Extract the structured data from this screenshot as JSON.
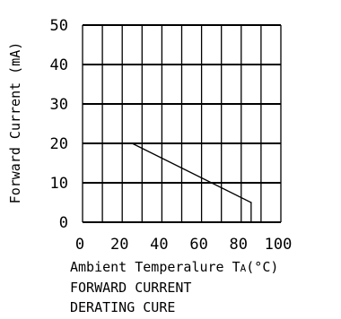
{
  "chart_data": {
    "type": "line",
    "title": "FORWARD CURRENT",
    "subtitle": "DERATING CURE",
    "xlabel": "Ambient Temperalure T",
    "xlabel_subscript": "A",
    "xlabel_unit": "(°C)",
    "ylabel": "Forward Current (mA)",
    "xlim": [
      0,
      100
    ],
    "ylim": [
      0,
      50
    ],
    "x_ticks": [
      0,
      10,
      20,
      30,
      40,
      50,
      60,
      70,
      80,
      90,
      100
    ],
    "x_tick_labels": [
      "0",
      "20",
      "40",
      "60",
      "80",
      "100"
    ],
    "y_ticks": [
      0,
      10,
      20,
      30,
      40,
      50
    ],
    "y_tick_labels": [
      "0",
      "10",
      "20",
      "30",
      "40",
      "50"
    ],
    "grid": true,
    "series": [
      {
        "x": [
          25,
          85,
          85
        ],
        "y": [
          20,
          5,
          0
        ]
      }
    ]
  }
}
